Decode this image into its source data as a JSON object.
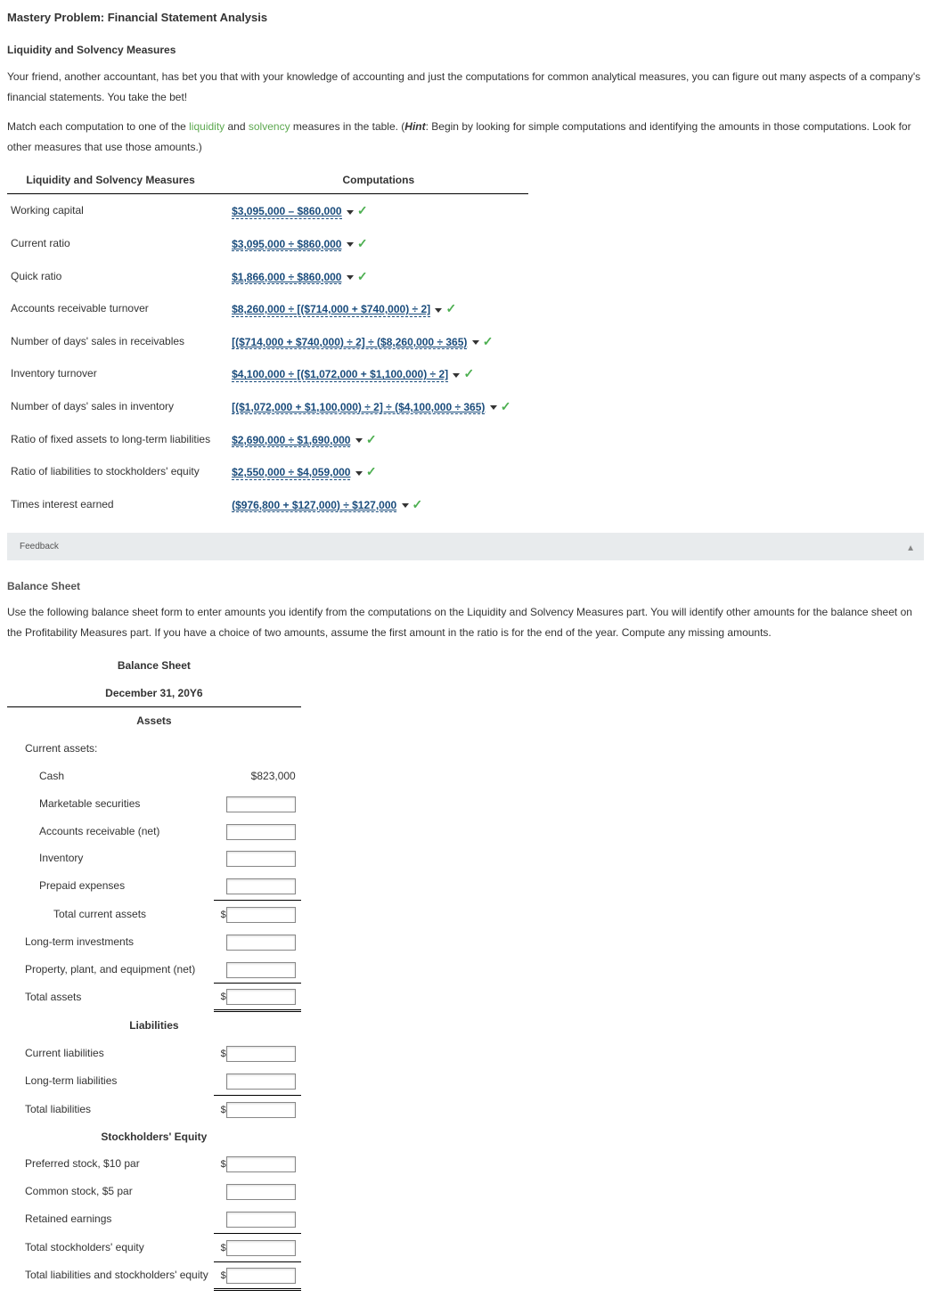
{
  "title": "Mastery Problem: Financial Statement Analysis",
  "section1_title": "Liquidity and Solvency Measures",
  "para1": "Your friend, another accountant, has bet you that with your knowledge of accounting and just the computations for common analytical measures, you can figure out many aspects of a company's financial statements. You take the bet!",
  "para2a": "Match each computation to one of the ",
  "link_liquidity": "liquidity",
  "para2b": " and ",
  "link_solvency": "solvency",
  "para2c": " measures in the table. (",
  "hint_label": "Hint",
  "para2d": ": Begin by looking for simple computations and identifying the amounts in those computations. Look for other measures that use those amounts.)",
  "col_measure": "Liquidity and Solvency Measures",
  "col_comp": "Computations",
  "rows": [
    {
      "label": "Working capital",
      "comp": "$3,095,000 – $860,000"
    },
    {
      "label": "Current ratio",
      "comp": "$3,095,000 ÷ $860,000"
    },
    {
      "label": "Quick ratio",
      "comp": "$1,866,000 ÷ $860,000"
    },
    {
      "label": "Accounts receivable turnover",
      "comp": "$8,260,000 ÷ [($714,000 + $740,000) ÷ 2]"
    },
    {
      "label": "Number  of days' sales in receivables",
      "comp": "[($714,000 + $740,000) ÷ 2] ÷ ($8,260,000 ÷ 365)"
    },
    {
      "label": "Inventory turnover",
      "comp": "$4,100,000 ÷ [($1,072,000 + $1,100,000) ÷ 2]"
    },
    {
      "label": "Number of days' sales in inventory",
      "comp": "[($1,072,000 + $1,100,000) ÷ 2] ÷ ($4,100,000 ÷ 365)"
    },
    {
      "label": "Ratio of fixed assets to long-term liabilities",
      "comp": "$2,690,000 ÷ $1,690,000"
    },
    {
      "label": "Ratio of liabilities to stockholders' equity",
      "comp": "$2,550,000 ÷ $4,059,000"
    },
    {
      "label": "Times interest earned",
      "comp": "($976,800 + $127,000) ÷ $127,000"
    }
  ],
  "feedback": "Feedback",
  "section2_title": "Balance Sheet",
  "para3": "Use the following balance sheet form to enter amounts you identify from the computations on the Liquidity and Solvency Measures part. You will identify other amounts for the balance sheet on the Profitability Measures part. If you have a choice of two amounts, assume the first amount in the ratio is for the end of the year. Compute any missing amounts.",
  "bs_title": "Balance Sheet",
  "bs_date": "December 31, 20Y6",
  "cat_assets": "Assets",
  "current_assets": "Current assets:",
  "cash": "Cash",
  "cash_val": "$823,000",
  "mkt_sec": "Marketable securities",
  "ar_net": "Accounts receivable (net)",
  "inventory": "Inventory",
  "prepaid": "Prepaid expenses",
  "tca": "Total current assets",
  "lti": "Long-term investments",
  "ppe": "Property, plant, and equipment (net)",
  "ta": "Total assets",
  "cat_liab": "Liabilities",
  "cl": "Current liabilities",
  "ltl": "Long-term liabilities",
  "tl": "Total liabilities",
  "cat_se": "Stockholders' Equity",
  "ps": "Preferred stock, $10 par",
  "cs": "Common stock, $5 par",
  "re": "Retained earnings",
  "tse": "Total stockholders' equity",
  "tlse": "Total liabilities and stockholders' equity"
}
